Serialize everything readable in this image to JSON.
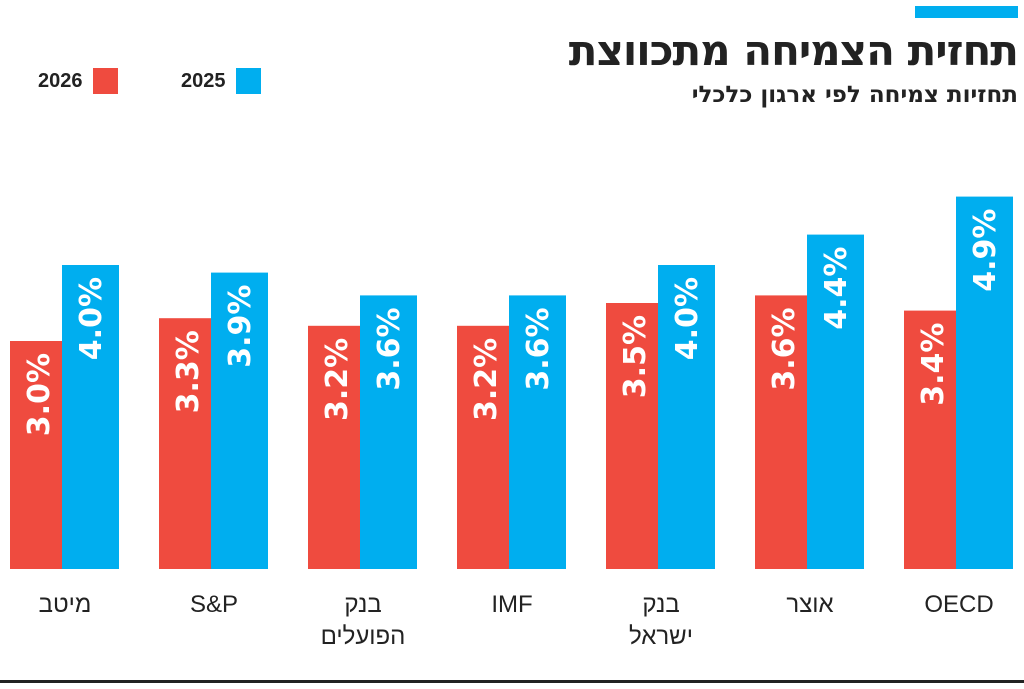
{
  "header": {
    "title": "תחזית הצמיחה מתכווצת",
    "subtitle": "תחזיות צמיחה לפי ארגון כלכלי"
  },
  "colors": {
    "accent": "#00aeef",
    "2026": "#ef4b3f",
    "2025": "#00aeef"
  },
  "chart_data": {
    "type": "bar",
    "title": "תחזית הצמיחה מתכווצת",
    "subtitle": "תחזיות צמיחה לפי ארגון כלכלי",
    "categories": [
      "מיטב",
      "S&P",
      "בנק הפועלים",
      "IMF",
      "בנק ישראל",
      "אוצר",
      "OECD"
    ],
    "category_lines": [
      [
        "מיטב"
      ],
      [
        "S&P"
      ],
      [
        "בנק",
        "הפועלים"
      ],
      [
        "IMF"
      ],
      [
        "בנק",
        "ישראל"
      ],
      [
        "אוצר"
      ],
      [
        "OECD"
      ]
    ],
    "series": [
      {
        "name": "2026",
        "color": "#ef4b3f",
        "values": [
          3.0,
          3.3,
          3.2,
          3.2,
          3.5,
          3.6,
          3.4
        ],
        "labels": [
          "3.0%",
          "3.3%",
          "3.2%",
          "3.2%",
          "3.5%",
          "3.6%",
          "3.4%"
        ]
      },
      {
        "name": "2025",
        "color": "#00aeef",
        "values": [
          4.0,
          3.9,
          3.6,
          3.6,
          4.0,
          4.4,
          4.9
        ],
        "labels": [
          "4.0%",
          "3.9%",
          "3.6%",
          "3.6%",
          "4.0%",
          "4.4%",
          "4.9%"
        ]
      }
    ],
    "legend": {
      "placement": "top-left",
      "items": [
        "2026",
        "2025"
      ]
    },
    "grid": false,
    "ylim": [
      0,
      5
    ]
  }
}
